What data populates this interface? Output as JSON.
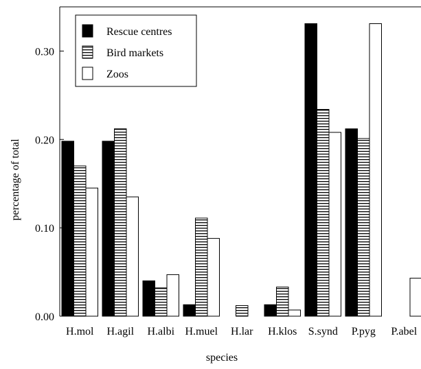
{
  "chart_data": {
    "type": "bar",
    "title": "",
    "xlabel": "species",
    "ylabel": "percentage of total",
    "ylim": [
      0,
      0.35
    ],
    "yticks": [
      "0.00",
      "0.10",
      "0.20",
      "0.30"
    ],
    "grid": false,
    "legend_position": "top-left",
    "categories": [
      "H.mol",
      "H.agil",
      "H.albi",
      "H.muel",
      "H.lar",
      "H.klos",
      "S.synd",
      "P.pyg",
      "P.abel"
    ],
    "series": [
      {
        "name": "Rescue centres",
        "fill": "solid",
        "color": "#000000",
        "values": [
          0.198,
          0.198,
          0.04,
          0.013,
          0.0,
          0.013,
          0.331,
          0.212,
          0.0
        ]
      },
      {
        "name": "Bird markets",
        "fill": "horizontal-stripes",
        "color": "#000000",
        "values": [
          0.17,
          0.212,
          0.032,
          0.111,
          0.012,
          0.033,
          0.234,
          0.201,
          0.0
        ]
      },
      {
        "name": "Zoos",
        "fill": "white",
        "color": "#000000",
        "values": [
          0.145,
          0.135,
          0.047,
          0.088,
          0.0,
          0.007,
          0.208,
          0.331,
          0.043
        ]
      }
    ]
  }
}
